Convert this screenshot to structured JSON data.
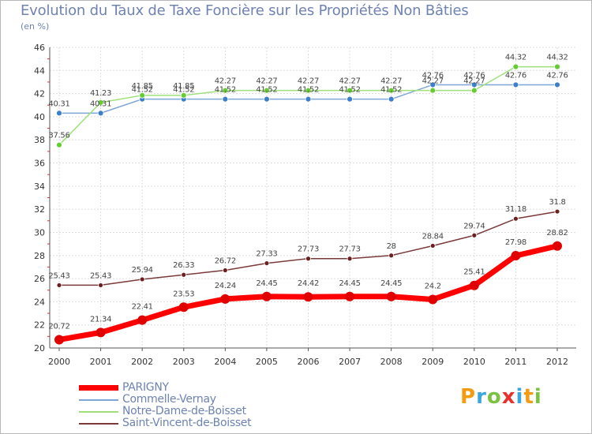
{
  "title": "Evolution du Taux de Taxe Foncière sur les Propriétés Non Bâties",
  "unit_label": "(en %)",
  "logo": {
    "text": "Proxiti",
    "letters": [
      {
        "ch": "P",
        "color": "#f39c12"
      },
      {
        "ch": "r",
        "color": "#3aa6dd"
      },
      {
        "ch": "o",
        "color": "#7cc242"
      },
      {
        "ch": "x",
        "color": "#e8312f"
      },
      {
        "ch": "i",
        "color": "#3aa6dd"
      },
      {
        "ch": "t",
        "color": "#f39c12"
      },
      {
        "ch": "i",
        "color": "#7cc242"
      }
    ]
  },
  "chart_data": {
    "type": "line",
    "title": "Evolution du Taux de Taxe Foncière sur les Propriétés Non Bâties",
    "ylabel": "(en %)",
    "xlabel": "",
    "x": [
      "2000",
      "2001",
      "2002",
      "2003",
      "2004",
      "2005",
      "2006",
      "2007",
      "2008",
      "2009",
      "2010",
      "2011",
      "2012"
    ],
    "ylim": [
      20,
      46
    ],
    "yticks": [
      20,
      22,
      24,
      26,
      28,
      30,
      32,
      34,
      36,
      38,
      40,
      42,
      44,
      46
    ],
    "grid": true,
    "legend_position": "bottom-left",
    "series": [
      {
        "name": "PARIGNY",
        "color": "#ff0000",
        "marker_color": "#e00000",
        "width": 7,
        "marker_radius": 6,
        "values": [
          20.72,
          21.34,
          22.41,
          23.53,
          24.24,
          24.45,
          24.42,
          24.45,
          24.45,
          24.2,
          25.41,
          27.98,
          28.82
        ],
        "labels": [
          "20.72",
          "21.34",
          "22.41",
          "23.53",
          "24.24",
          "24.45",
          "24.42",
          "24.45",
          "24.45",
          "24.2",
          "25.41",
          "27.98",
          "28.82"
        ]
      },
      {
        "name": "Commelle-Vernay",
        "color": "#7ea6d6",
        "marker_color": "#3d7fc8",
        "width": 1.5,
        "marker_radius": 3.5,
        "values": [
          40.31,
          40.31,
          41.52,
          41.52,
          41.52,
          41.52,
          41.52,
          41.52,
          41.52,
          42.76,
          42.76,
          42.76,
          42.76
        ],
        "labels": [
          "40.31",
          "40.31",
          "41.52",
          "41.52",
          "41.52",
          "41.52",
          "41.52",
          "41.52",
          "41.52",
          "42.76",
          "42.76",
          "42.76",
          "42.76"
        ]
      },
      {
        "name": "Notre-Dame-de-Boisset",
        "color": "#9fe07a",
        "marker_color": "#66cc33",
        "width": 1.5,
        "marker_radius": 3.5,
        "values": [
          37.56,
          41.23,
          41.85,
          41.85,
          42.27,
          42.27,
          42.27,
          42.27,
          42.27,
          42.27,
          42.27,
          44.32,
          44.32
        ],
        "labels": [
          "37.56",
          "41.23",
          "41.85",
          "41.85",
          "42.27",
          "42.27",
          "42.27",
          "42.27",
          "42.27",
          "42.27",
          "42.27",
          "44.32",
          "44.32"
        ]
      },
      {
        "name": "Saint-Vincent-de-Boisset",
        "color": "#7a3a3a",
        "marker_color": "#6b1f1f",
        "width": 1.5,
        "marker_radius": 3,
        "values": [
          25.43,
          25.43,
          25.94,
          26.33,
          26.72,
          27.33,
          27.73,
          27.73,
          28.0,
          28.84,
          29.74,
          31.18,
          31.8
        ],
        "labels": [
          "25.43",
          "25.43",
          "25.94",
          "26.33",
          "26.72",
          "27.33",
          "27.73",
          "27.73",
          "28",
          "28.84",
          "29.74",
          "31.18",
          "31.8"
        ]
      }
    ]
  }
}
